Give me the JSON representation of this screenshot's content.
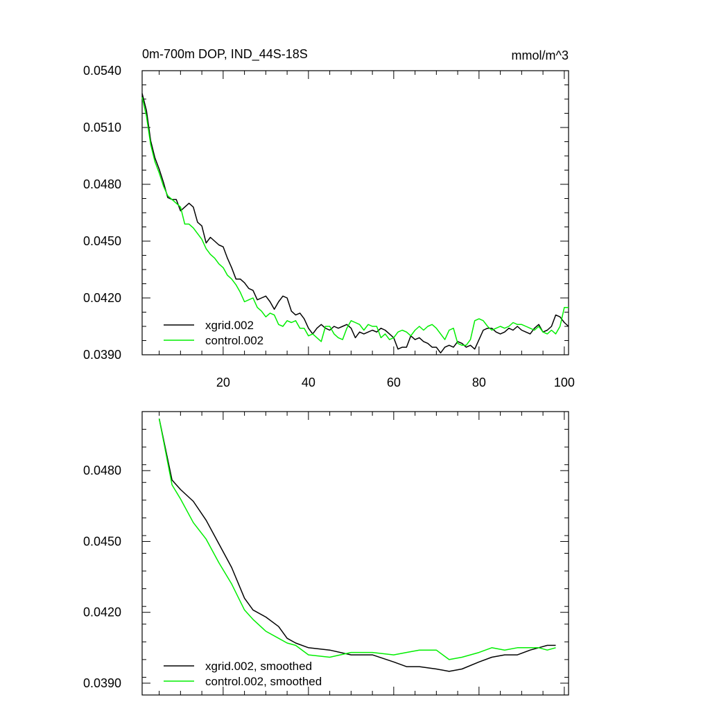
{
  "chart_data": [
    {
      "type": "line",
      "title": "0m-700m DOP, IND_44S-18S",
      "units": "mmol/m^3",
      "xlim": [
        1,
        101
      ],
      "ylim": [
        0.039,
        0.054
      ],
      "x_ticks": [
        20,
        40,
        60,
        80,
        100
      ],
      "x_tick_labels": [
        "20",
        "40",
        "60",
        "80",
        "100"
      ],
      "y_ticks": [
        0.039,
        0.042,
        0.045,
        0.048,
        0.051,
        0.054
      ],
      "y_tick_labels": [
        "0.0390",
        "0.0420",
        "0.0450",
        "0.0480",
        "0.0510",
        "0.0540"
      ],
      "legend_position": "bottom-left",
      "series": [
        {
          "name": "xgrid.002",
          "color": "#000000",
          "x": [
            1,
            2,
            3,
            4,
            5,
            6,
            7,
            8,
            9,
            10,
            11,
            12,
            13,
            14,
            15,
            16,
            17,
            18,
            19,
            20,
            21,
            22,
            23,
            24,
            25,
            26,
            27,
            28,
            29,
            30,
            31,
            32,
            33,
            34,
            35,
            36,
            37,
            38,
            39,
            40,
            41,
            42,
            43,
            44,
            45,
            46,
            47,
            48,
            49,
            50,
            51,
            52,
            53,
            54,
            55,
            56,
            57,
            58,
            59,
            60,
            61,
            62,
            63,
            64,
            65,
            66,
            67,
            68,
            69,
            70,
            71,
            72,
            73,
            74,
            75,
            76,
            77,
            78,
            79,
            80,
            81,
            82,
            83,
            84,
            85,
            86,
            87,
            88,
            89,
            90,
            91,
            92,
            93,
            94,
            95,
            96,
            97,
            98,
            99,
            100,
            101
          ],
          "values": [
            0.0528,
            0.0519,
            0.0503,
            0.0494,
            0.0488,
            0.0481,
            0.0473,
            0.0472,
            0.0472,
            0.0466,
            0.0468,
            0.047,
            0.0468,
            0.046,
            0.0458,
            0.0449,
            0.0452,
            0.045,
            0.0448,
            0.0447,
            0.0441,
            0.0436,
            0.043,
            0.043,
            0.0428,
            0.0425,
            0.0424,
            0.0419,
            0.042,
            0.0421,
            0.0418,
            0.0414,
            0.0418,
            0.0421,
            0.042,
            0.0413,
            0.0411,
            0.0412,
            0.0409,
            0.0404,
            0.0401,
            0.0404,
            0.0406,
            0.0404,
            0.0403,
            0.0405,
            0.0404,
            0.0405,
            0.0406,
            0.0404,
            0.0399,
            0.0402,
            0.0401,
            0.0402,
            0.0403,
            0.0402,
            0.0404,
            0.0403,
            0.0401,
            0.0399,
            0.0393,
            0.0394,
            0.0394,
            0.04,
            0.0398,
            0.0399,
            0.0397,
            0.0396,
            0.0394,
            0.0394,
            0.0391,
            0.0394,
            0.0395,
            0.0394,
            0.0397,
            0.0396,
            0.0394,
            0.0395,
            0.0393,
            0.0398,
            0.0403,
            0.0404,
            0.0404,
            0.0402,
            0.0401,
            0.0402,
            0.0404,
            0.0403,
            0.0405,
            0.0403,
            0.0402,
            0.0401,
            0.0404,
            0.0406,
            0.0402,
            0.0403,
            0.0405,
            0.0411,
            0.041,
            0.0407,
            0.0405
          ]
        },
        {
          "name": "control.002",
          "color": "#00ee00",
          "x": [
            1,
            2,
            3,
            4,
            5,
            6,
            7,
            8,
            9,
            10,
            11,
            12,
            13,
            14,
            15,
            16,
            17,
            18,
            19,
            20,
            21,
            22,
            23,
            24,
            25,
            26,
            27,
            28,
            29,
            30,
            31,
            32,
            33,
            34,
            35,
            36,
            37,
            38,
            39,
            40,
            41,
            42,
            43,
            44,
            45,
            46,
            47,
            48,
            49,
            50,
            51,
            52,
            53,
            54,
            55,
            56,
            57,
            58,
            59,
            60,
            61,
            62,
            63,
            64,
            65,
            66,
            67,
            68,
            69,
            70,
            71,
            72,
            73,
            74,
            75,
            76,
            77,
            78,
            79,
            80,
            81,
            82,
            83,
            84,
            85,
            86,
            87,
            88,
            89,
            90,
            91,
            92,
            93,
            94,
            95,
            96,
            97,
            98,
            99,
            100,
            101
          ],
          "values": [
            0.0526,
            0.0516,
            0.0501,
            0.0492,
            0.0486,
            0.0479,
            0.0474,
            0.0472,
            0.047,
            0.0468,
            0.0459,
            0.0459,
            0.0457,
            0.0454,
            0.0451,
            0.0446,
            0.0443,
            0.0441,
            0.0438,
            0.0436,
            0.0432,
            0.043,
            0.0427,
            0.0423,
            0.0418,
            0.0419,
            0.042,
            0.0415,
            0.0413,
            0.041,
            0.0412,
            0.0411,
            0.0406,
            0.0405,
            0.0408,
            0.0407,
            0.0408,
            0.0404,
            0.0404,
            0.04,
            0.0401,
            0.0399,
            0.0397,
            0.0405,
            0.0405,
            0.0401,
            0.0399,
            0.0398,
            0.0404,
            0.0408,
            0.0407,
            0.0406,
            0.0403,
            0.0406,
            0.0405,
            0.0405,
            0.0399,
            0.0401,
            0.0398,
            0.0399,
            0.0402,
            0.0403,
            0.0402,
            0.04,
            0.0403,
            0.0405,
            0.0403,
            0.0405,
            0.0406,
            0.0404,
            0.0401,
            0.0398,
            0.0403,
            0.0404,
            0.0396,
            0.0395,
            0.0395,
            0.0398,
            0.0408,
            0.0409,
            0.0408,
            0.0405,
            0.0403,
            0.0404,
            0.0405,
            0.0404,
            0.0405,
            0.0407,
            0.0406,
            0.0406,
            0.0405,
            0.0404,
            0.0403,
            0.0405,
            0.0402,
            0.0401,
            0.0403,
            0.0401,
            0.0405,
            0.0415,
            0.0415
          ]
        }
      ]
    },
    {
      "type": "line",
      "xlim": [
        1,
        101
      ],
      "ylim": [
        0.0385,
        0.0505
      ],
      "x_ticks": [
        20,
        40,
        60,
        80,
        100
      ],
      "x_tick_labels": [
        "",
        "",
        "",
        "",
        ""
      ],
      "y_ticks": [
        0.039,
        0.042,
        0.045,
        0.048
      ],
      "y_tick_labels": [
        "0.0390",
        "0.0420",
        "0.0450",
        "0.0480"
      ],
      "legend_position": "bottom-left",
      "series": [
        {
          "name": "xgrid.002, smoothed",
          "color": "#000000",
          "x": [
            5,
            8,
            10,
            13,
            16,
            19,
            22,
            25,
            27,
            30,
            33,
            35,
            37,
            40,
            45,
            50,
            55,
            60,
            63,
            66,
            70,
            73,
            76,
            80,
            83,
            86,
            89,
            92,
            94,
            96,
            98
          ],
          "values": [
            0.0502,
            0.0476,
            0.0472,
            0.0467,
            0.0459,
            0.0449,
            0.0439,
            0.0426,
            0.0421,
            0.0418,
            0.0414,
            0.0409,
            0.0407,
            0.0405,
            0.0404,
            0.0402,
            0.0402,
            0.0399,
            0.0397,
            0.0397,
            0.0396,
            0.0395,
            0.0396,
            0.0399,
            0.0401,
            0.0402,
            0.0402,
            0.0404,
            0.0405,
            0.0406,
            0.0406
          ]
        },
        {
          "name": "control.002, smoothed",
          "color": "#00ee00",
          "x": [
            5,
            8,
            10,
            13,
            16,
            19,
            22,
            25,
            27,
            30,
            33,
            35,
            37,
            40,
            45,
            50,
            55,
            60,
            63,
            66,
            70,
            73,
            76,
            80,
            83,
            86,
            89,
            92,
            94,
            96,
            98
          ],
          "values": [
            0.0502,
            0.0474,
            0.0468,
            0.0458,
            0.0451,
            0.0441,
            0.0432,
            0.0421,
            0.0417,
            0.0412,
            0.0409,
            0.0407,
            0.0406,
            0.0402,
            0.0401,
            0.0403,
            0.0403,
            0.0402,
            0.0403,
            0.0404,
            0.0404,
            0.04,
            0.0401,
            0.0403,
            0.0405,
            0.0404,
            0.0405,
            0.0405,
            0.0405,
            0.0404,
            0.0405
          ]
        }
      ]
    }
  ]
}
